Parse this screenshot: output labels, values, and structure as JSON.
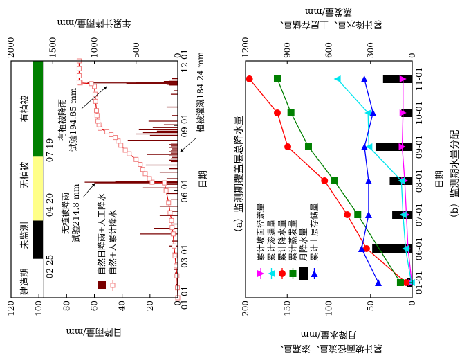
{
  "chart_data": [
    {
      "type": "bar",
      "title": "（a）监测期覆盖层总降水量",
      "xlabel": "日期",
      "ylabel": "日降雨量/mm",
      "y2label": "年累计降雨量/mm",
      "ylim": [
        0,
        120
      ],
      "y2lim": [
        0,
        2000
      ],
      "yticks": [
        0,
        20,
        40,
        60,
        80,
        100,
        120
      ],
      "y2ticks": [
        0,
        500,
        1000,
        1500,
        2000
      ],
      "xlim": [
        "01-01",
        "12-01"
      ],
      "xticks": [
        "01-01",
        "03-01",
        "06-01",
        "09-01",
        "12-01"
      ],
      "legend": [
        "自然日降雨+人工降水",
        "自然+人累计降水"
      ],
      "legend_placement": "bottom-left",
      "colors": {
        "daily": "#7a0000",
        "cumulative_line": "#e00000",
        "cumulative_marker": "#f08080"
      },
      "stages": [
        {
          "label": "建造期",
          "start": "01-01",
          "end": "02-25",
          "color": "#ffffff"
        },
        {
          "label": "未监测",
          "start": "02-25",
          "end": "04-20",
          "color": "#000000"
        },
        {
          "label": "无植被",
          "start": "04-20",
          "end": "07-19",
          "color": "#ffff88"
        },
        {
          "label": "有植被",
          "start": "07-19",
          "end": "12-01",
          "color": "#008000"
        }
      ],
      "stage_dates": [
        "02-25",
        "04-20",
        "07-19"
      ],
      "annotations": [
        {
          "line1": "无植被降雨",
          "line2": "试验214.8 mm"
        },
        {
          "line1": "有植被降雨",
          "line2": "试验194.85 mm"
        },
        {
          "line1": "植被灌溉184.24 mm"
        }
      ],
      "daily_series": {
        "name": "自然日降雨+人工降水",
        "points": [
          [
            "01-20",
            1
          ],
          [
            "02-05",
            2
          ],
          [
            "02-10",
            3
          ],
          [
            "02-20",
            2
          ],
          [
            "03-05",
            4
          ],
          [
            "03-15",
            6
          ],
          [
            "03-22",
            4
          ],
          [
            "04-01",
            27
          ],
          [
            "04-09",
            17
          ],
          [
            "04-15",
            5
          ],
          [
            "04-27",
            13
          ],
          [
            "05-03",
            6
          ],
          [
            "05-10",
            13
          ],
          [
            "05-20",
            5
          ],
          [
            "05-28",
            8
          ],
          [
            "06-05",
            25
          ],
          [
            "06-10",
            10
          ],
          [
            "06-12",
            60
          ],
          [
            "06-13",
            67
          ],
          [
            "06-14",
            45
          ],
          [
            "06-18",
            8
          ],
          [
            "06-27",
            13
          ],
          [
            "07-02",
            6
          ],
          [
            "07-07",
            23
          ],
          [
            "07-12",
            5
          ],
          [
            "07-14",
            6
          ],
          [
            "07-16",
            5
          ],
          [
            "07-18",
            4
          ],
          [
            "07-20",
            6
          ],
          [
            "07-22",
            22
          ],
          [
            "07-24",
            5
          ],
          [
            "07-26",
            6
          ],
          [
            "07-28",
            5
          ],
          [
            "07-30",
            4
          ],
          [
            "08-01",
            6
          ],
          [
            "08-03",
            5
          ],
          [
            "08-05",
            6
          ],
          [
            "08-07",
            5
          ],
          [
            "08-11",
            36
          ],
          [
            "08-18",
            20
          ],
          [
            "08-20",
            30
          ],
          [
            "08-22",
            25
          ],
          [
            "08-24",
            15
          ],
          [
            "08-26",
            28
          ],
          [
            "08-29",
            18
          ],
          [
            "09-02",
            10
          ],
          [
            "09-07",
            21
          ],
          [
            "09-15",
            4
          ],
          [
            "09-27",
            8
          ],
          [
            "10-15",
            5
          ],
          [
            "10-20",
            3
          ],
          [
            "10-28",
            6
          ],
          [
            "10-29",
            8
          ],
          [
            "10-30",
            37
          ],
          [
            "10-31",
            65
          ],
          [
            "11-01",
            30
          ],
          [
            "11-02",
            10
          ],
          [
            "11-04",
            6
          ],
          [
            "11-06",
            4
          ]
        ]
      },
      "cumulative_series": {
        "name": "自然+人累计降水",
        "points": [
          [
            "01-01",
            0
          ],
          [
            "01-15",
            4
          ],
          [
            "02-01",
            10
          ],
          [
            "02-15",
            20
          ],
          [
            "03-01",
            33
          ],
          [
            "03-15",
            45
          ],
          [
            "04-01",
            55
          ],
          [
            "04-10",
            68
          ],
          [
            "04-20",
            75
          ],
          [
            "05-01",
            92
          ],
          [
            "05-15",
            110
          ],
          [
            "06-01",
            140
          ],
          [
            "06-12",
            160
          ],
          [
            "06-13",
            308
          ],
          [
            "06-18",
            340
          ],
          [
            "06-25",
            390
          ],
          [
            "07-01",
            420
          ],
          [
            "07-08",
            450
          ],
          [
            "07-15",
            500
          ],
          [
            "07-23",
            583
          ],
          [
            "07-28",
            630
          ],
          [
            "08-04",
            683
          ],
          [
            "08-10",
            715
          ],
          [
            "08-15",
            750
          ],
          [
            "08-19",
            800
          ],
          [
            "08-23",
            850
          ],
          [
            "08-28",
            933
          ],
          [
            "09-02",
            945
          ],
          [
            "09-07",
            958
          ],
          [
            "09-15",
            968
          ],
          [
            "09-22",
            975
          ],
          [
            "10-05",
            985
          ],
          [
            "10-15",
            992
          ],
          [
            "10-26",
            1000
          ],
          [
            "10-30",
            1037
          ],
          [
            "10-31",
            1170
          ],
          [
            "11-01",
            1183
          ],
          [
            "11-10",
            1183
          ],
          [
            "11-20",
            1183
          ],
          [
            "12-01",
            1183
          ]
        ]
      }
    },
    {
      "type": "bar+line",
      "title": "（b）监测期水量分配",
      "xlabel": "日期",
      "ylabel_lines": [
        "累计坡面径流量、渗漏量、",
        "月降水量/mm"
      ],
      "y2label_lines": [
        "累计降水量、土层存储量、",
        "蒸发量/mm"
      ],
      "ylim": [
        0,
        200
      ],
      "y2lim": [
        0,
        1200
      ],
      "yticks": [
        0,
        50,
        100,
        150,
        200
      ],
      "y2ticks": [
        0,
        300,
        600,
        900,
        1200
      ],
      "categories": [
        "01-01",
        "06-01",
        "07-01",
        "08-01",
        "09-01",
        "10-01",
        "11-01"
      ],
      "legend_placement": "bottom-left",
      "series": [
        {
          "name": "累计坡面径流量",
          "axis": "left",
          "color": "#ff00ff",
          "marker": "triangle-right",
          "values": [
            0.5,
            5,
            7,
            9,
            12,
            11,
            11
          ]
        },
        {
          "name": "累计渗漏量",
          "axis": "left",
          "color": "#00e5ee",
          "marker": "triangle-left",
          "values": [
            1,
            8,
            11,
            13,
            52,
            53,
            90
          ]
        },
        {
          "name": "累计降水量",
          "axis": "right",
          "color": "#ff0000",
          "marker": "circle",
          "values": [
            45,
            329,
            468,
            631,
            896,
            971,
            1172
          ]
        },
        {
          "name": "累计蒸发量",
          "axis": "right",
          "color": "#008000",
          "marker": "square",
          "values": [
            85,
            null,
            392,
            561,
            747,
            873,
            971
          ]
        },
        {
          "name": "月降水量",
          "axis": "left",
          "color": "#000000",
          "marker": "bar",
          "values": [
            6,
            48,
            24,
            27,
            44,
            13,
            35
          ]
        },
        {
          "name": "累计土层存储量",
          "axis": "right",
          "color": "#0000ff",
          "marker": "triangle-up",
          "values": [
            244,
            364,
            314,
            314,
            344,
            282,
            345
          ]
        }
      ]
    }
  ]
}
